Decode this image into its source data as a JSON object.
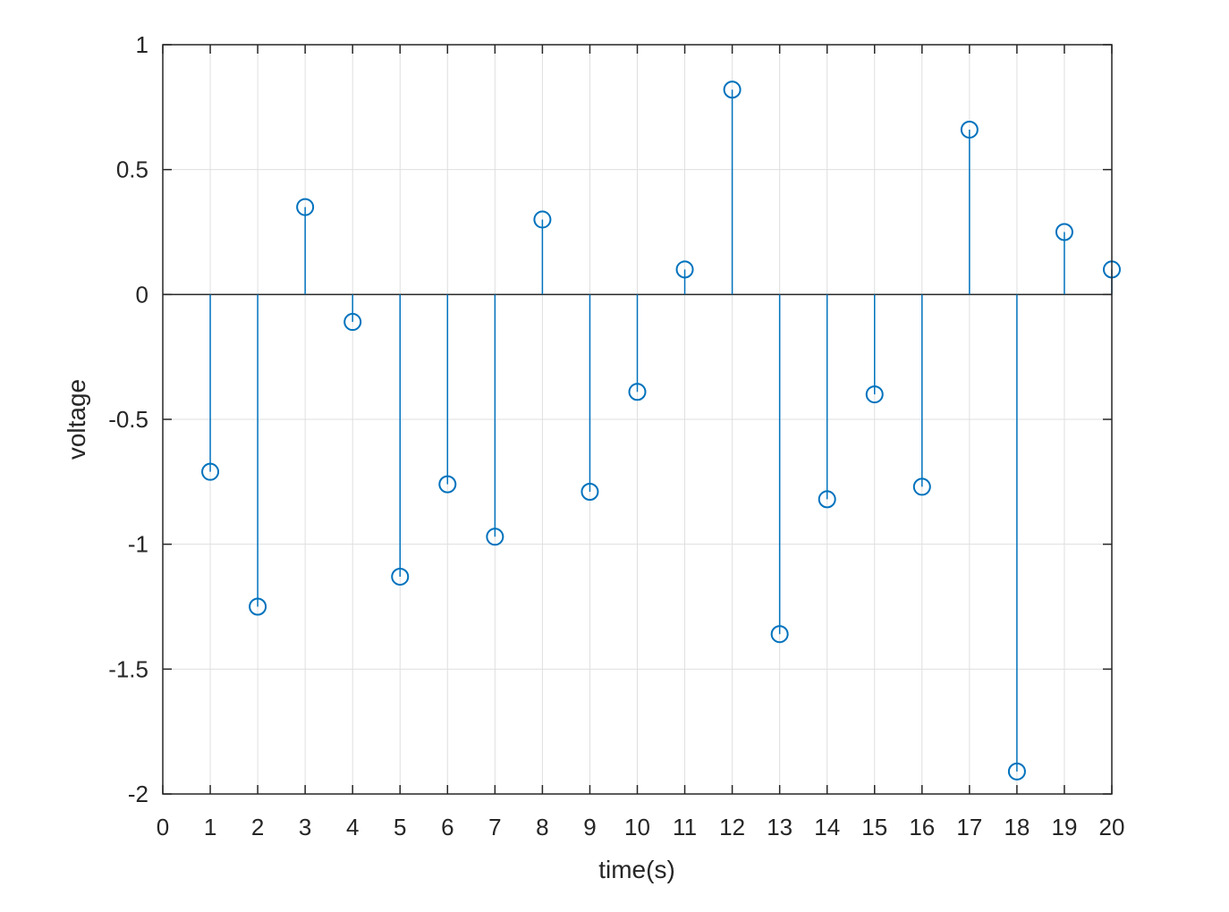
{
  "chart_data": {
    "type": "stem",
    "title": "",
    "xlabel": "time(s)",
    "ylabel": "voltage",
    "xlim": [
      0,
      20
    ],
    "ylim": [
      -2,
      1
    ],
    "xticks": [
      0,
      1,
      2,
      3,
      4,
      5,
      6,
      7,
      8,
      9,
      10,
      11,
      12,
      13,
      14,
      15,
      16,
      17,
      18,
      19,
      20
    ],
    "yticks": [
      -2,
      -1.5,
      -1,
      -0.5,
      0,
      0.5,
      1
    ],
    "grid": true,
    "marker": "circle",
    "color": "#0072BD",
    "series": [
      {
        "x": [
          1,
          2,
          3,
          4,
          5,
          6,
          7,
          8,
          9,
          10,
          11,
          12,
          13,
          14,
          15,
          16,
          17,
          18,
          19,
          20
        ],
        "y": [
          -0.71,
          -1.25,
          0.35,
          -0.11,
          -1.13,
          -0.76,
          -0.97,
          0.3,
          -0.79,
          -0.39,
          0.1,
          0.82,
          -1.36,
          -0.82,
          -0.4,
          -0.77,
          0.66,
          -1.91,
          0.25,
          0.1
        ]
      }
    ]
  }
}
